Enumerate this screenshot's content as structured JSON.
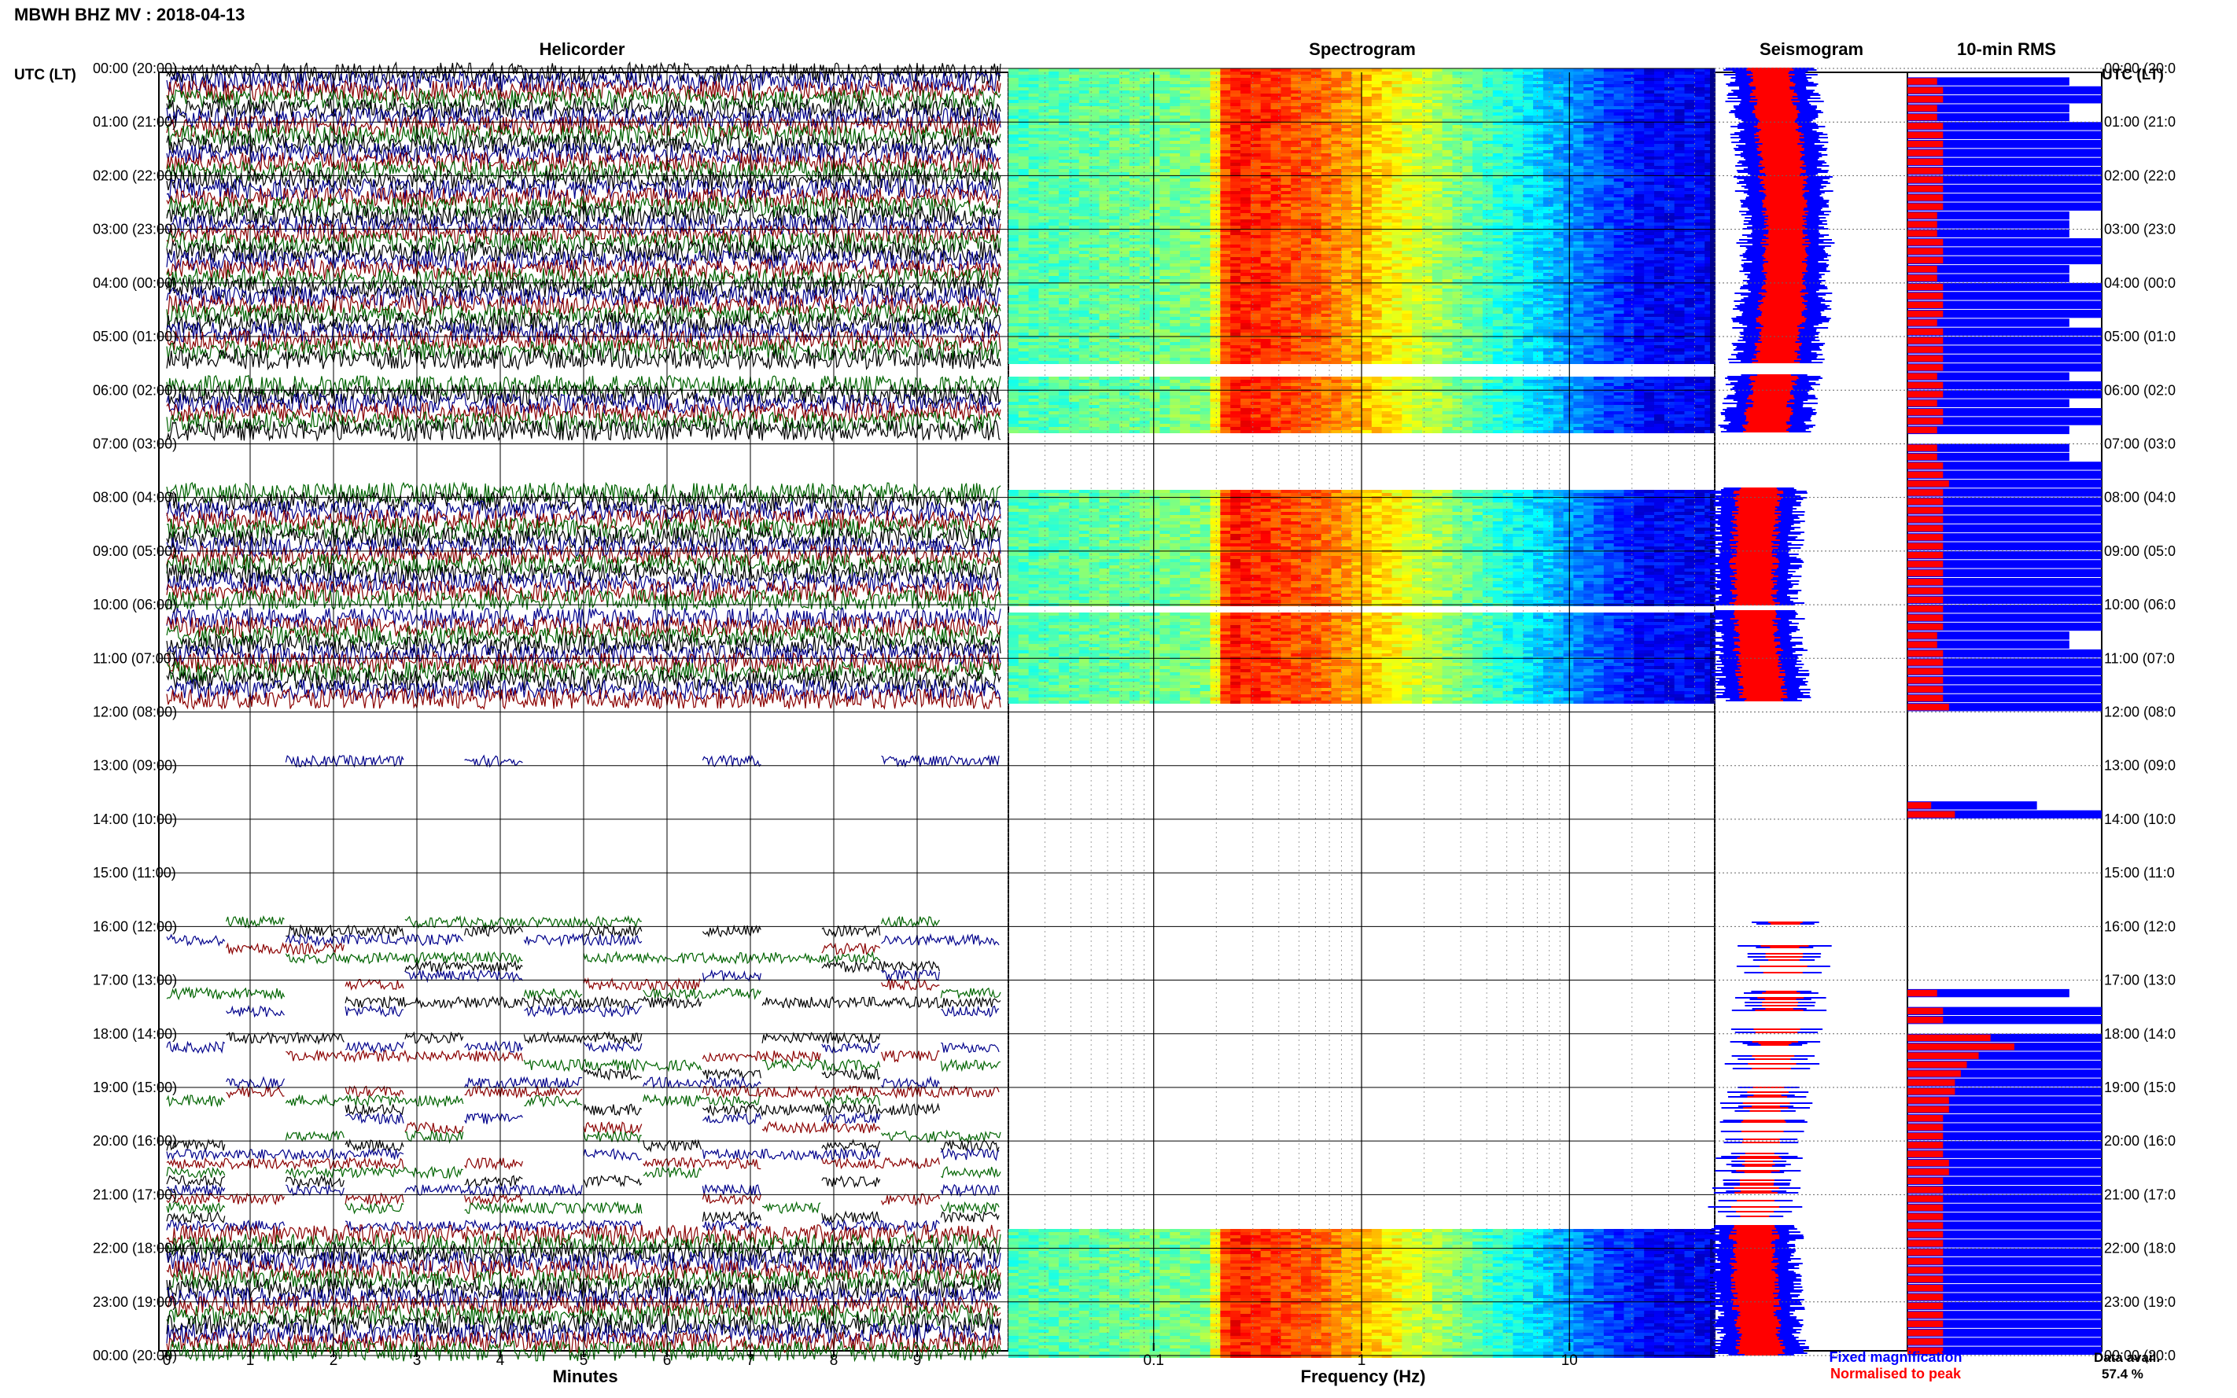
{
  "title": "MBWH BHZ MV : 2018-04-13",
  "panels": {
    "helicorder": "Helicorder",
    "spectrogram": "Spectrogram",
    "seismogram": "Seismogram",
    "rms": "10-min RMS"
  },
  "utc_header": "UTC (LT)",
  "time_labels": [
    "00:00 (20:00)",
    "01:00 (21:00)",
    "02:00 (22:00)",
    "03:00 (23:00)",
    "04:00 (00:00)",
    "05:00 (01:00)",
    "06:00 (02:00)",
    "07:00 (03:00)",
    "08:00 (04:00)",
    "09:00 (05:00)",
    "10:00 (06:00)",
    "11:00 (07:00)",
    "12:00 (08:00)",
    "13:00 (09:00)",
    "14:00 (10:00)",
    "15:00 (11:00)",
    "16:00 (12:00)",
    "17:00 (13:00)",
    "18:00 (14:00)",
    "19:00 (15:00)",
    "20:00 (16:00)",
    "21:00 (17:00)",
    "22:00 (18:00)",
    "23:00 (19:00)",
    "00:00 (20:00)"
  ],
  "right_time_labels": [
    "00:00 (20:0",
    "01:00 (21:0",
    "02:00 (22:0",
    "03:00 (23:0",
    "04:00 (00:0",
    "05:00 (01:0",
    "06:00 (02:0",
    "07:00 (03:0",
    "08:00 (04:0",
    "09:00 (05:0",
    "10:00 (06:0",
    "11:00 (07:0",
    "12:00 (08:0",
    "13:00 (09:0",
    "14:00 (10:0",
    "15:00 (11:0",
    "16:00 (12:0",
    "17:00 (13:0",
    "18:00 (14:0",
    "19:00 (15:0",
    "20:00 (16:0",
    "21:00 (17:0",
    "22:00 (18:0",
    "23:00 (19:0",
    "00:00 (20:0"
  ],
  "minute_ticks": [
    "0",
    "1",
    "2",
    "3",
    "4",
    "5",
    "6",
    "7",
    "8",
    "9"
  ],
  "minutes_label": "Minutes",
  "freq_ticks": [
    "0.1",
    "1",
    "10"
  ],
  "freq_label": "Frequency (Hz)",
  "legend": {
    "fixed": "Fixed magnification",
    "normalised": "Normalised to peak",
    "fixed_color": "#0000ff",
    "normalised_color": "#ff0000"
  },
  "data_avail": {
    "label": "Data avail.",
    "value": "57.4 %"
  },
  "colors": {
    "trace_cycle": [
      "#000000",
      "#00008b",
      "#8b0000",
      "#006400"
    ],
    "rms_fixed": "#0000ff",
    "rms_normalised": "#ff0000"
  },
  "chart_data": {
    "type": "heatmap",
    "station": "MBWH BHZ MV",
    "date": "2018-04-13",
    "time_axis_hours": [
      0,
      24
    ],
    "minutes_range": [
      0,
      10
    ],
    "frequency_range_hz": [
      0.02,
      50
    ],
    "frequency_scale": "log",
    "data_availability_percent": 57.4,
    "data_segments_hours": [
      [
        0,
        5.5
      ],
      [
        5.7,
        6.8
      ],
      [
        7.8,
        10.0
      ],
      [
        10.1,
        11.8
      ],
      [
        21.6,
        24
      ]
    ],
    "gap_segments_hours": [
      [
        5.5,
        5.7
      ],
      [
        6.8,
        7.8
      ],
      [
        11.8,
        21.6
      ]
    ],
    "sparse_segments_hours": [
      [
        12.8,
        13.0
      ],
      [
        15.8,
        17.6
      ],
      [
        17.9,
        21.6
      ]
    ],
    "rms_fixed_10min": [
      [
        0.0,
        0.5,
        0.6,
        0.6,
        0.5,
        0.5
      ],
      [
        0.6,
        0.6,
        0.6,
        0.6,
        0.6,
        0.6
      ],
      [
        0.6,
        0.6,
        0.6,
        0.6,
        0.5,
        0.5
      ],
      [
        0.5,
        0.6,
        0.6,
        0.6,
        0.5,
        0.5
      ],
      [
        0.6,
        0.6,
        0.6,
        0.6,
        0.5,
        0.6
      ],
      [
        0.6,
        0.6,
        0.6,
        0.6,
        0.5,
        0.6
      ],
      [
        0.6,
        0.5,
        0.6,
        0.6,
        0.5,
        0.0
      ],
      [
        0.5,
        0.5,
        0.6,
        0.6,
        0.7,
        0.6
      ],
      [
        0.6,
        0.6,
        0.6,
        0.6,
        0.6,
        0.6
      ],
      [
        0.6,
        0.6,
        0.6,
        0.6,
        0.6,
        0.6
      ],
      [
        0.6,
        0.6,
        0.6,
        0.5,
        0.5,
        0.6
      ],
      [
        0.6,
        0.6,
        0.6,
        0.6,
        0.6,
        0.7
      ],
      [
        0.0,
        0.0,
        0.0,
        0.0,
        0.0,
        0.0
      ],
      [
        0.0,
        0.0,
        0.0,
        0.0,
        0.4,
        0.8
      ],
      [
        0.0,
        0.0,
        0.0,
        0.0,
        0.0,
        0.0
      ],
      [
        0.0,
        0.0,
        0.0,
        0.0,
        0.0,
        0.0
      ],
      [
        0.0,
        0.0,
        0.0,
        0.0,
        0.0,
        0.0
      ],
      [
        0.0,
        0.5,
        0.0,
        0.6,
        0.6,
        0.0
      ],
      [
        1.4,
        1.8,
        1.2,
        1.0,
        0.9,
        0.8
      ],
      [
        0.8,
        0.7,
        0.7,
        0.6,
        0.6,
        0.6
      ],
      [
        0.6,
        0.6,
        0.7,
        0.7,
        0.6,
        0.6
      ],
      [
        0.6,
        0.6,
        0.6,
        0.6,
        0.6,
        0.6
      ],
      [
        0.6,
        0.6,
        0.6,
        0.6,
        0.6,
        0.6
      ],
      [
        0.6,
        0.6,
        0.6,
        0.6,
        0.6,
        0.6
      ]
    ]
  }
}
